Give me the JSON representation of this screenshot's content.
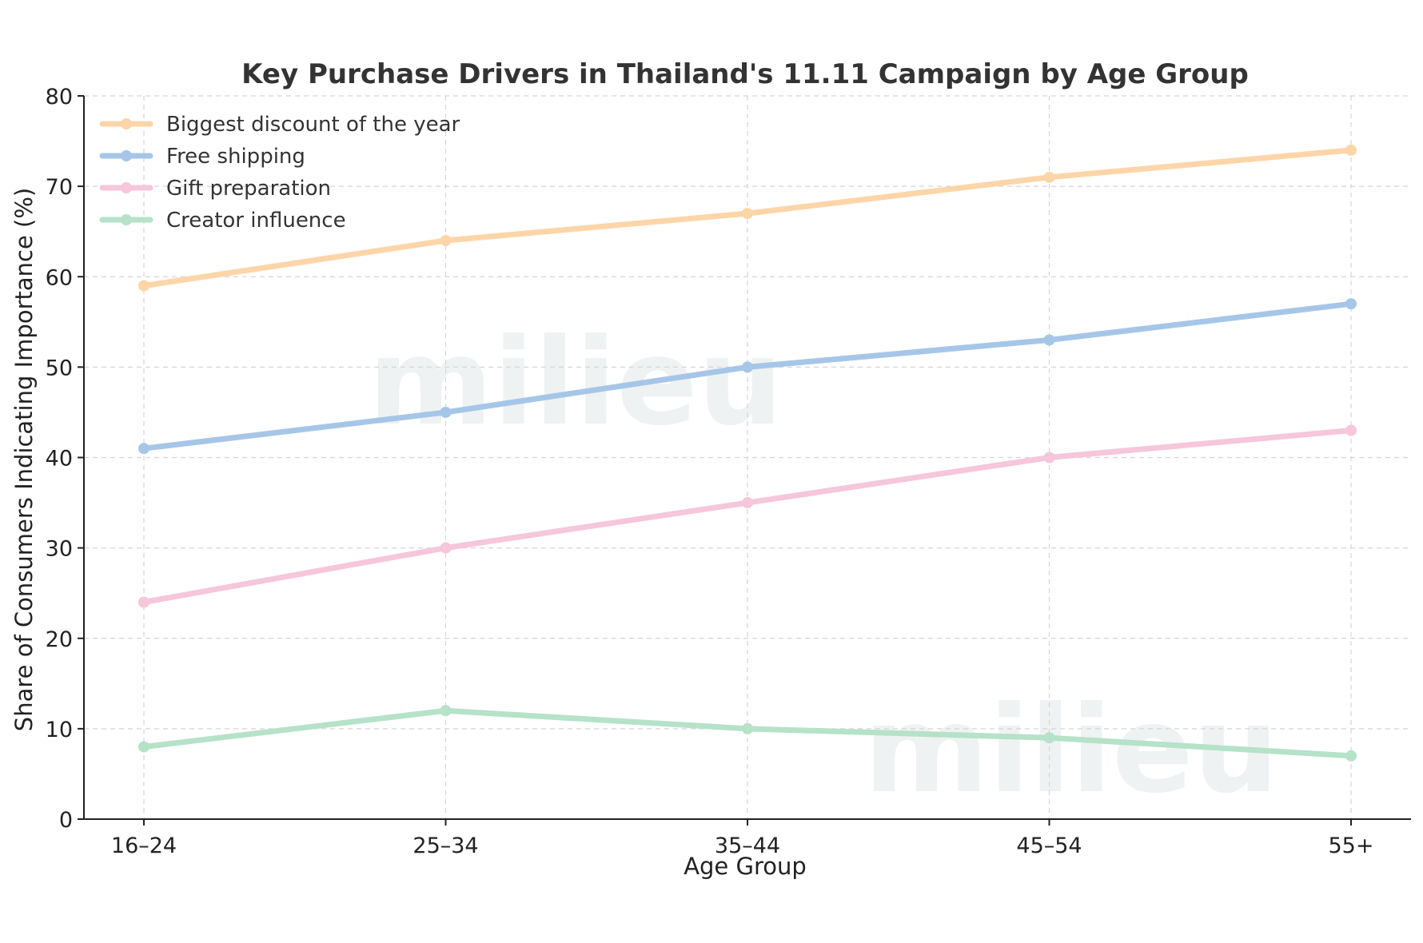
{
  "chart_data": {
    "type": "line",
    "title": "Key Purchase Drivers in Thailand's 11.11 Campaign by Age Group",
    "xlabel": "Age Group",
    "ylabel": "Share of Consumers Indicating Importance (%)",
    "categories": [
      "16–24",
      "25–34",
      "35–44",
      "45–54",
      "55+"
    ],
    "ylim": [
      0,
      80
    ],
    "yticks": [
      0,
      10,
      20,
      30,
      40,
      50,
      60,
      70,
      80
    ],
    "grid": true,
    "legend_position": "top-left",
    "series": [
      {
        "name": "Biggest discount of the year",
        "color": "#fdd5a8",
        "values": [
          59,
          64,
          67,
          71,
          74
        ]
      },
      {
        "name": "Free shipping",
        "color": "#a6c6e8",
        "values": [
          41,
          45,
          50,
          53,
          57
        ]
      },
      {
        "name": "Gift preparation",
        "color": "#f6c6da",
        "values": [
          24,
          30,
          35,
          40,
          43
        ]
      },
      {
        "name": "Creator influence",
        "color": "#b5e2c9",
        "values": [
          8,
          12,
          10,
          9,
          7
        ]
      }
    ],
    "watermark": "milieu"
  }
}
